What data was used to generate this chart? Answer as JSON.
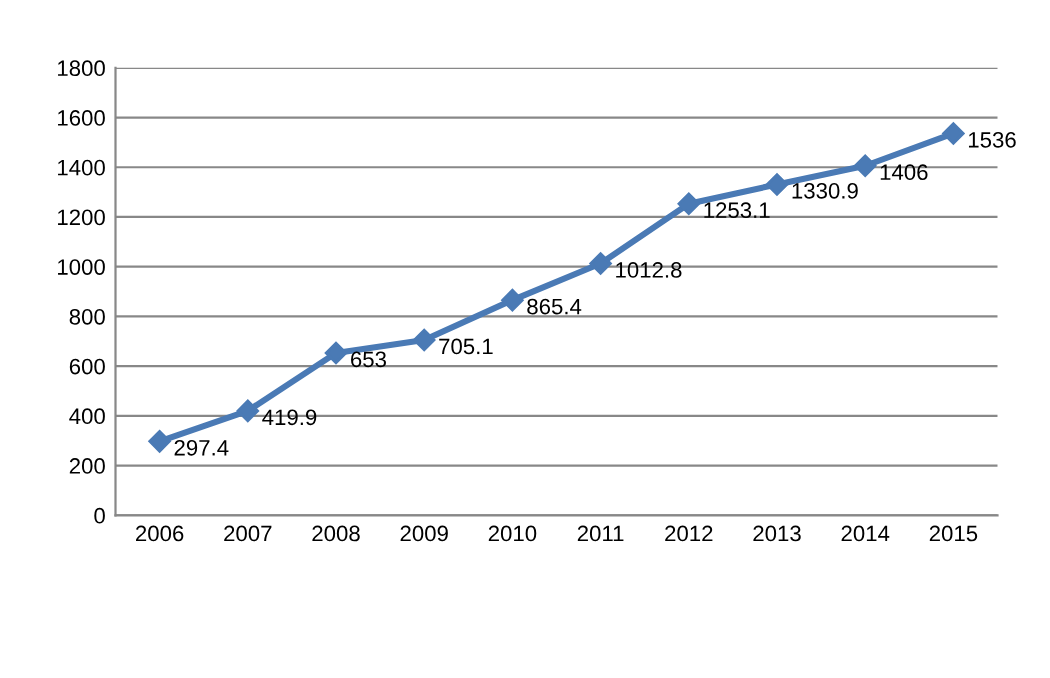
{
  "chart_data": {
    "type": "line",
    "categories": [
      "2006",
      "2007",
      "2008",
      "2009",
      "2010",
      "2011",
      "2012",
      "2013",
      "2014",
      "2015"
    ],
    "series": [
      {
        "color": "#4a7ab5",
        "values": [
          297.4,
          419.9,
          653,
          705.1,
          865.4,
          1012.8,
          1253.1,
          1330.9,
          1406,
          1536
        ]
      }
    ],
    "ylim": [
      0,
      1800
    ],
    "yticks": [
      0,
      200,
      400,
      600,
      800,
      1000,
      1200,
      1400,
      1600,
      1800
    ],
    "grid": "y",
    "marker": "diamond",
    "line_style": "solid",
    "data_labels": true
  }
}
